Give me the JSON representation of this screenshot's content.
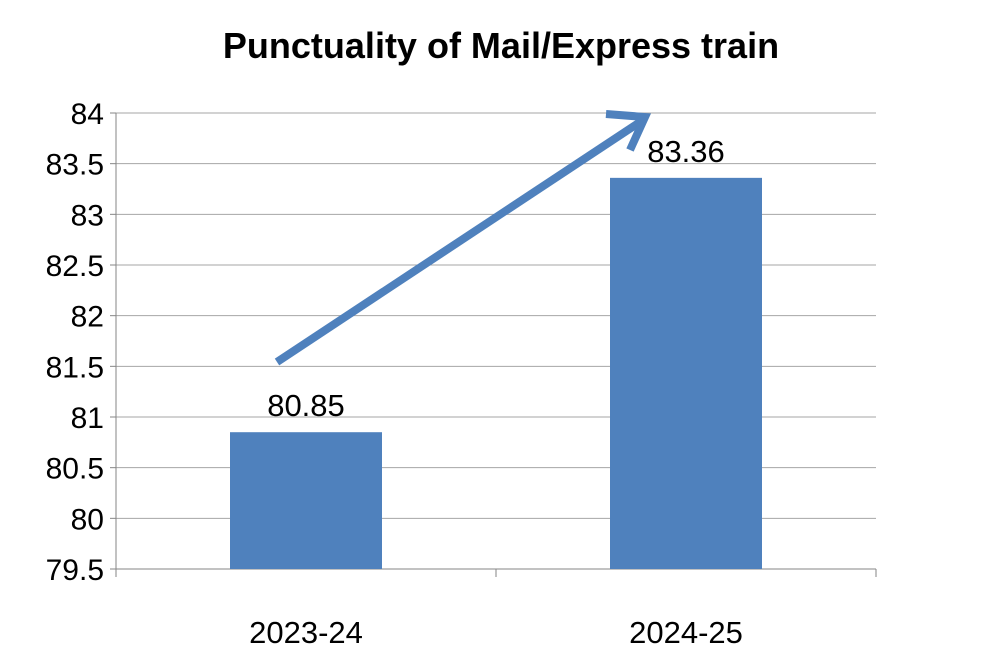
{
  "chart_data": {
    "type": "bar",
    "title": "Punctuality of Mail/Express train",
    "xlabel": "",
    "ylabel": "",
    "categories": [
      "2023-24",
      "2024-25"
    ],
    "values": [
      80.85,
      83.36
    ],
    "data_labels": [
      "80.85",
      "83.36"
    ],
    "ylim": [
      79.5,
      84
    ],
    "yticks": [
      "79.5",
      "80",
      "80.5",
      "81",
      "81.5",
      "82",
      "82.5",
      "83",
      "83.5",
      "84"
    ],
    "grid": true,
    "legend": "none",
    "annotation": "upward-trend-arrow",
    "colors": {
      "bar": "#4F81BD",
      "arrow": "#4F81BD",
      "grid": "#A6A6A6",
      "axis": "#868686"
    }
  }
}
